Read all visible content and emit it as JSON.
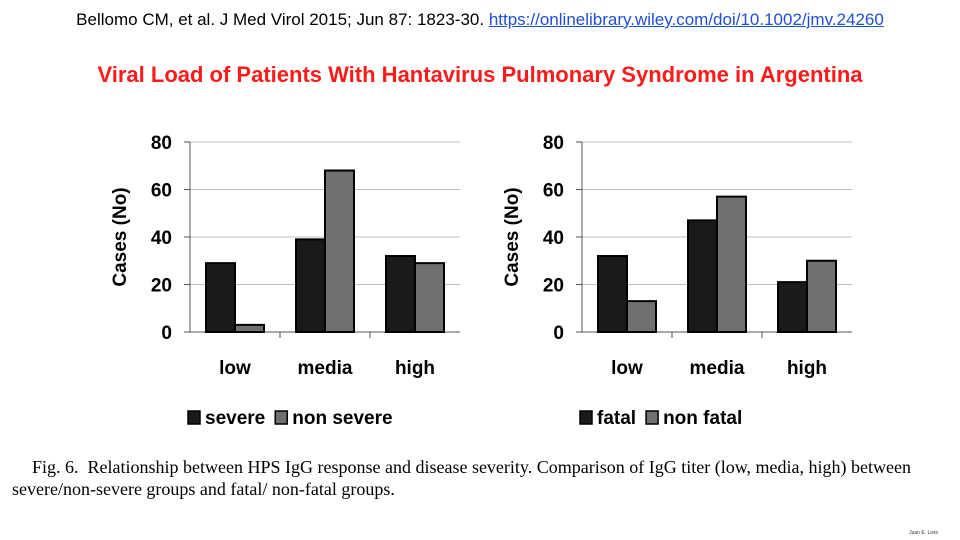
{
  "header": {
    "citation_text": "Bellomo CM, et al. J Med Virol 2015; Jun 87: 1823-30.",
    "citation_link": "https://onlinelibrary.wiley.com/doi/10.1002/jmv.24260"
  },
  "title": "Viral Load of Patients With Hantavirus Pulmonary Syndrome in Argentina",
  "caption": {
    "figure_label": "Fig. 6.",
    "text": "Relationship between HPS IgG response and disease severity. Comparison of IgG titer (low, media, high) between severe/non-severe groups and fatal/ non-fatal groups."
  },
  "credit": "Juan E. Loss",
  "colors": {
    "series_dark": "#1a1a1a",
    "series_gray": "#707070",
    "bar_outline": "#000000",
    "grid": "#bfbfbf"
  },
  "chart_data": [
    {
      "type": "bar",
      "categories": [
        "low",
        "media",
        "high"
      ],
      "series": [
        {
          "name": "severe",
          "values": [
            29,
            39,
            32
          ]
        },
        {
          "name": "non severe",
          "values": [
            3,
            68,
            29
          ]
        }
      ],
      "ylabel": "Cases (No)",
      "ylim": [
        0,
        80
      ],
      "yticks": [
        0,
        20,
        40,
        60,
        80
      ],
      "grid": true,
      "legend": "bottom"
    },
    {
      "type": "bar",
      "categories": [
        "low",
        "media",
        "high"
      ],
      "series": [
        {
          "name": "fatal",
          "values": [
            32,
            47,
            21
          ]
        },
        {
          "name": "non fatal",
          "values": [
            13,
            57,
            30
          ]
        }
      ],
      "ylabel": "Cases (No)",
      "ylim": [
        0,
        80
      ],
      "yticks": [
        0,
        20,
        40,
        60,
        80
      ],
      "grid": true,
      "legend": "bottom"
    }
  ]
}
